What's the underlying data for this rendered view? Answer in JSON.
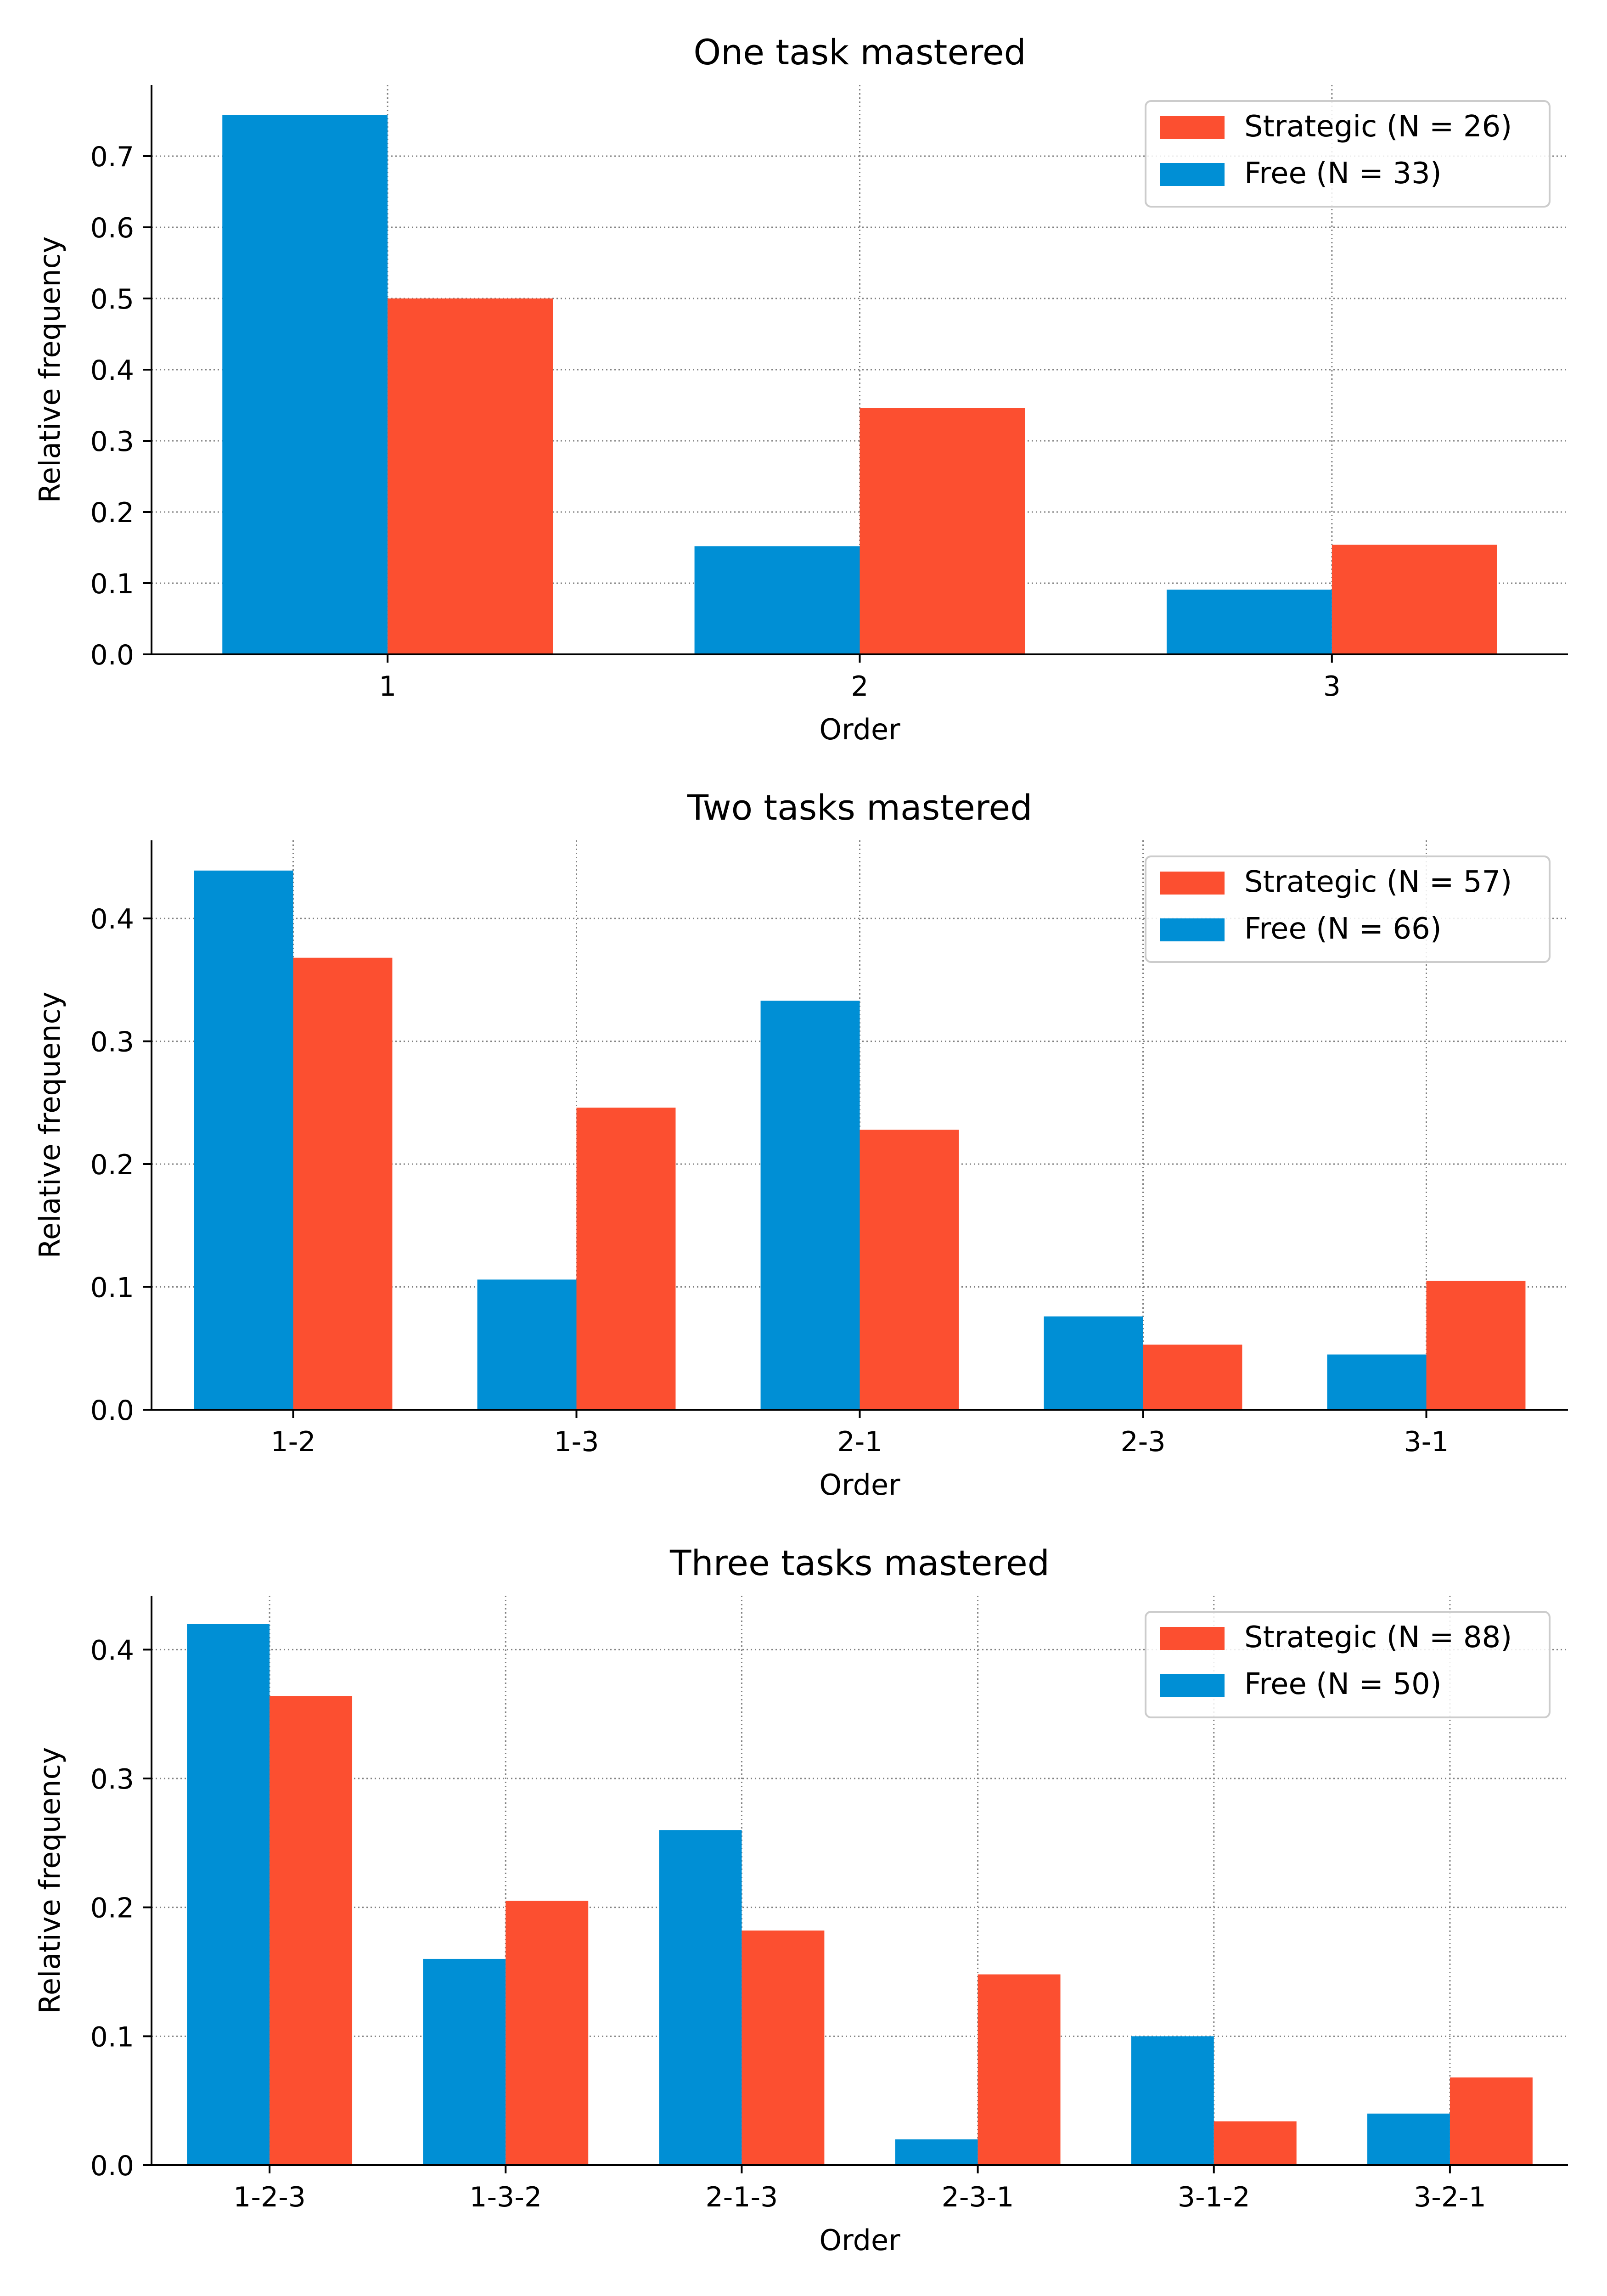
{
  "colors": {
    "free": "#008fd5",
    "strategic": "#fc4f30",
    "grid": "#808080",
    "axis": "#000000"
  },
  "chart_data": [
    {
      "type": "bar",
      "title": "One task mastered",
      "xlabel": "Order",
      "ylabel": "Relative frequency",
      "categories": [
        "1",
        "2",
        "3"
      ],
      "ylim": [
        0,
        0.8
      ],
      "yticks": [
        "0.0",
        "0.1",
        "0.2",
        "0.3",
        "0.4",
        "0.5",
        "0.6",
        "0.7"
      ],
      "grid": true,
      "legend_position": "top-right",
      "series": [
        {
          "name": "Free (N = 33)",
          "color": "#008fd5",
          "values": [
            0.758,
            0.152,
            0.091
          ]
        },
        {
          "name": "Strategic (N = 26)",
          "color": "#fc4f30",
          "values": [
            0.5,
            0.346,
            0.154
          ]
        }
      ],
      "legend_order": [
        "Strategic (N = 26)",
        "Free (N = 33)"
      ]
    },
    {
      "type": "bar",
      "title": "Two tasks mastered",
      "xlabel": "Order",
      "ylabel": "Relative frequency",
      "categories": [
        "1-2",
        "1-3",
        "2-1",
        "2-3",
        "3-1"
      ],
      "ylim": [
        0,
        0.4636
      ],
      "yticks": [
        "0.0",
        "0.1",
        "0.2",
        "0.3",
        "0.4"
      ],
      "grid": true,
      "legend_position": "top-right",
      "series": [
        {
          "name": "Free (N = 66)",
          "color": "#008fd5",
          "values": [
            0.439,
            0.106,
            0.333,
            0.076,
            0.045
          ]
        },
        {
          "name": "Strategic (N = 57)",
          "color": "#fc4f30",
          "values": [
            0.368,
            0.246,
            0.228,
            0.053,
            0.105
          ]
        }
      ],
      "legend_order": [
        "Strategic (N = 57)",
        "Free (N = 66)"
      ]
    },
    {
      "type": "bar",
      "title": "Three tasks mastered",
      "xlabel": "Order",
      "ylabel": "Relative frequency",
      "categories": [
        "1-2-3",
        "1-3-2",
        "2-1-3",
        "2-3-1",
        "3-1-2",
        "3-2-1"
      ],
      "ylim": [
        0,
        0.4418
      ],
      "yticks": [
        "0.0",
        "0.1",
        "0.2",
        "0.3",
        "0.4"
      ],
      "grid": true,
      "legend_position": "top-right",
      "series": [
        {
          "name": "Free (N = 50)",
          "color": "#008fd5",
          "values": [
            0.42,
            0.16,
            0.26,
            0.02,
            0.1,
            0.04
          ]
        },
        {
          "name": "Strategic (N = 88)",
          "color": "#fc4f30",
          "values": [
            0.364,
            0.205,
            0.182,
            0.148,
            0.034,
            0.068
          ]
        }
      ],
      "legend_order": [
        "Strategic (N = 88)",
        "Free (N = 50)"
      ]
    }
  ]
}
